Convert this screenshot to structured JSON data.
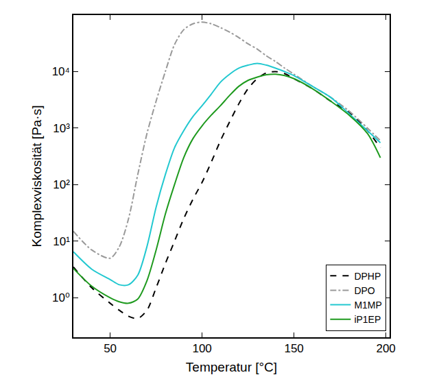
{
  "chart_data": {
    "type": "line",
    "x_label": "Temperatur [°C]",
    "y_label": "Komplexviskosität [Pa·s]",
    "log": "y",
    "grid": false,
    "legend": "lower right",
    "xlim": [
      30,
      202
    ],
    "xticks": [
      50,
      100,
      150,
      200
    ],
    "ylim": [
      0.2,
      100000
    ],
    "yticks": [
      {
        "value": 1,
        "label": "10⁰"
      },
      {
        "value": 10,
        "label": "10¹"
      },
      {
        "value": 100,
        "label": "10²"
      },
      {
        "value": 1000,
        "label": "10³"
      },
      {
        "value": 10000,
        "label": "10⁴"
      }
    ],
    "x": [
      30,
      40,
      50,
      55,
      60,
      65,
      70,
      75,
      80,
      85,
      90,
      95,
      100,
      105,
      110,
      115,
      120,
      125,
      130,
      135,
      140,
      145,
      150,
      160,
      170,
      180,
      190,
      197
    ],
    "series": [
      {
        "name": "DPHP",
        "color": "#000000",
        "line_style": "dash",
        "values": [
          3.5,
          1.5,
          0.8,
          0.6,
          0.47,
          0.43,
          0.6,
          1.5,
          4,
          10,
          25,
          55,
          110,
          250,
          600,
          1300,
          2700,
          5000,
          7500,
          9500,
          10000,
          9200,
          7500,
          5000,
          3000,
          1900,
          900,
          450
        ]
      },
      {
        "name": "DPO",
        "color": "#999999",
        "line_style": "dashdot",
        "values": [
          15,
          7,
          5,
          8,
          25,
          150,
          800,
          3000,
          10000,
          30000,
          55000,
          70000,
          75000,
          70000,
          60000,
          50000,
          40000,
          31000,
          25000,
          19000,
          15000,
          11500,
          9000,
          5500,
          3500,
          2000,
          1000,
          600
        ]
      },
      {
        "name": "M1MP",
        "color": "#22c8d0",
        "line_style": "solid",
        "values": [
          6.5,
          3.2,
          2.1,
          1.7,
          1.7,
          2.5,
          8,
          40,
          150,
          450,
          900,
          1600,
          2500,
          4000,
          6500,
          9000,
          11500,
          13000,
          14000,
          13000,
          11500,
          10000,
          8500,
          5500,
          3500,
          1800,
          900,
          550
        ]
      },
      {
        "name": "iP1EP",
        "color": "#1e9a1e",
        "line_style": "solid",
        "values": [
          3.3,
          1.6,
          1.0,
          0.85,
          0.8,
          0.95,
          2,
          7,
          30,
          100,
          300,
          650,
          1100,
          1700,
          2500,
          3800,
          5500,
          7000,
          8000,
          8800,
          9000,
          8500,
          7500,
          5000,
          3000,
          1700,
          800,
          300
        ]
      }
    ]
  }
}
